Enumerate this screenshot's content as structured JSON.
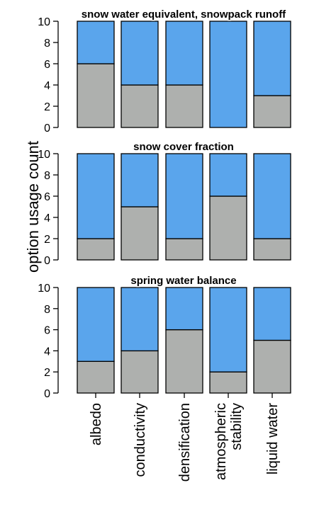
{
  "chart_data": [
    {
      "type": "bar",
      "stacked": true,
      "title": "snow water equivalent, snowpack runoff",
      "categories": [
        "albedo",
        "conductivity",
        "densification",
        "atmospheric stability",
        "liquid water"
      ],
      "series": [
        {
          "values": [
            6,
            4,
            4,
            0,
            3
          ],
          "color": "#aeb0ae"
        },
        {
          "values": [
            4,
            6,
            6,
            10,
            7
          ],
          "color": "#5aa5ec"
        }
      ],
      "ylim": [
        0,
        10
      ],
      "yticks": [
        "0",
        "2",
        "4",
        "6",
        "8",
        "10"
      ]
    },
    {
      "type": "bar",
      "stacked": true,
      "title": "snow cover fraction",
      "categories": [
        "albedo",
        "conductivity",
        "densification",
        "atmospheric stability",
        "liquid water"
      ],
      "series": [
        {
          "values": [
            2,
            5,
            2,
            6,
            2
          ],
          "color": "#aeb0ae"
        },
        {
          "values": [
            8,
            5,
            8,
            4,
            8
          ],
          "color": "#5aa5ec"
        }
      ],
      "ylim": [
        0,
        10
      ],
      "yticks": [
        "0",
        "2",
        "4",
        "6",
        "8",
        "10"
      ]
    },
    {
      "type": "bar",
      "stacked": true,
      "title": "spring water balance",
      "categories": [
        "albedo",
        "conductivity",
        "densification",
        "atmospheric stability",
        "liquid water"
      ],
      "series": [
        {
          "values": [
            3,
            4,
            6,
            2,
            5
          ],
          "color": "#aeb0ae"
        },
        {
          "values": [
            7,
            6,
            4,
            8,
            5
          ],
          "color": "#5aa5ec"
        }
      ],
      "ylim": [
        0,
        10
      ],
      "yticks": [
        "0",
        "2",
        "4",
        "6",
        "8",
        "10"
      ]
    }
  ],
  "ylabel": "option usage count",
  "xlabels": [
    [
      "albedo"
    ],
    [
      "conductivity"
    ],
    [
      "densification"
    ],
    [
      "atmospheric",
      "stability"
    ],
    [
      "liquid water"
    ]
  ]
}
